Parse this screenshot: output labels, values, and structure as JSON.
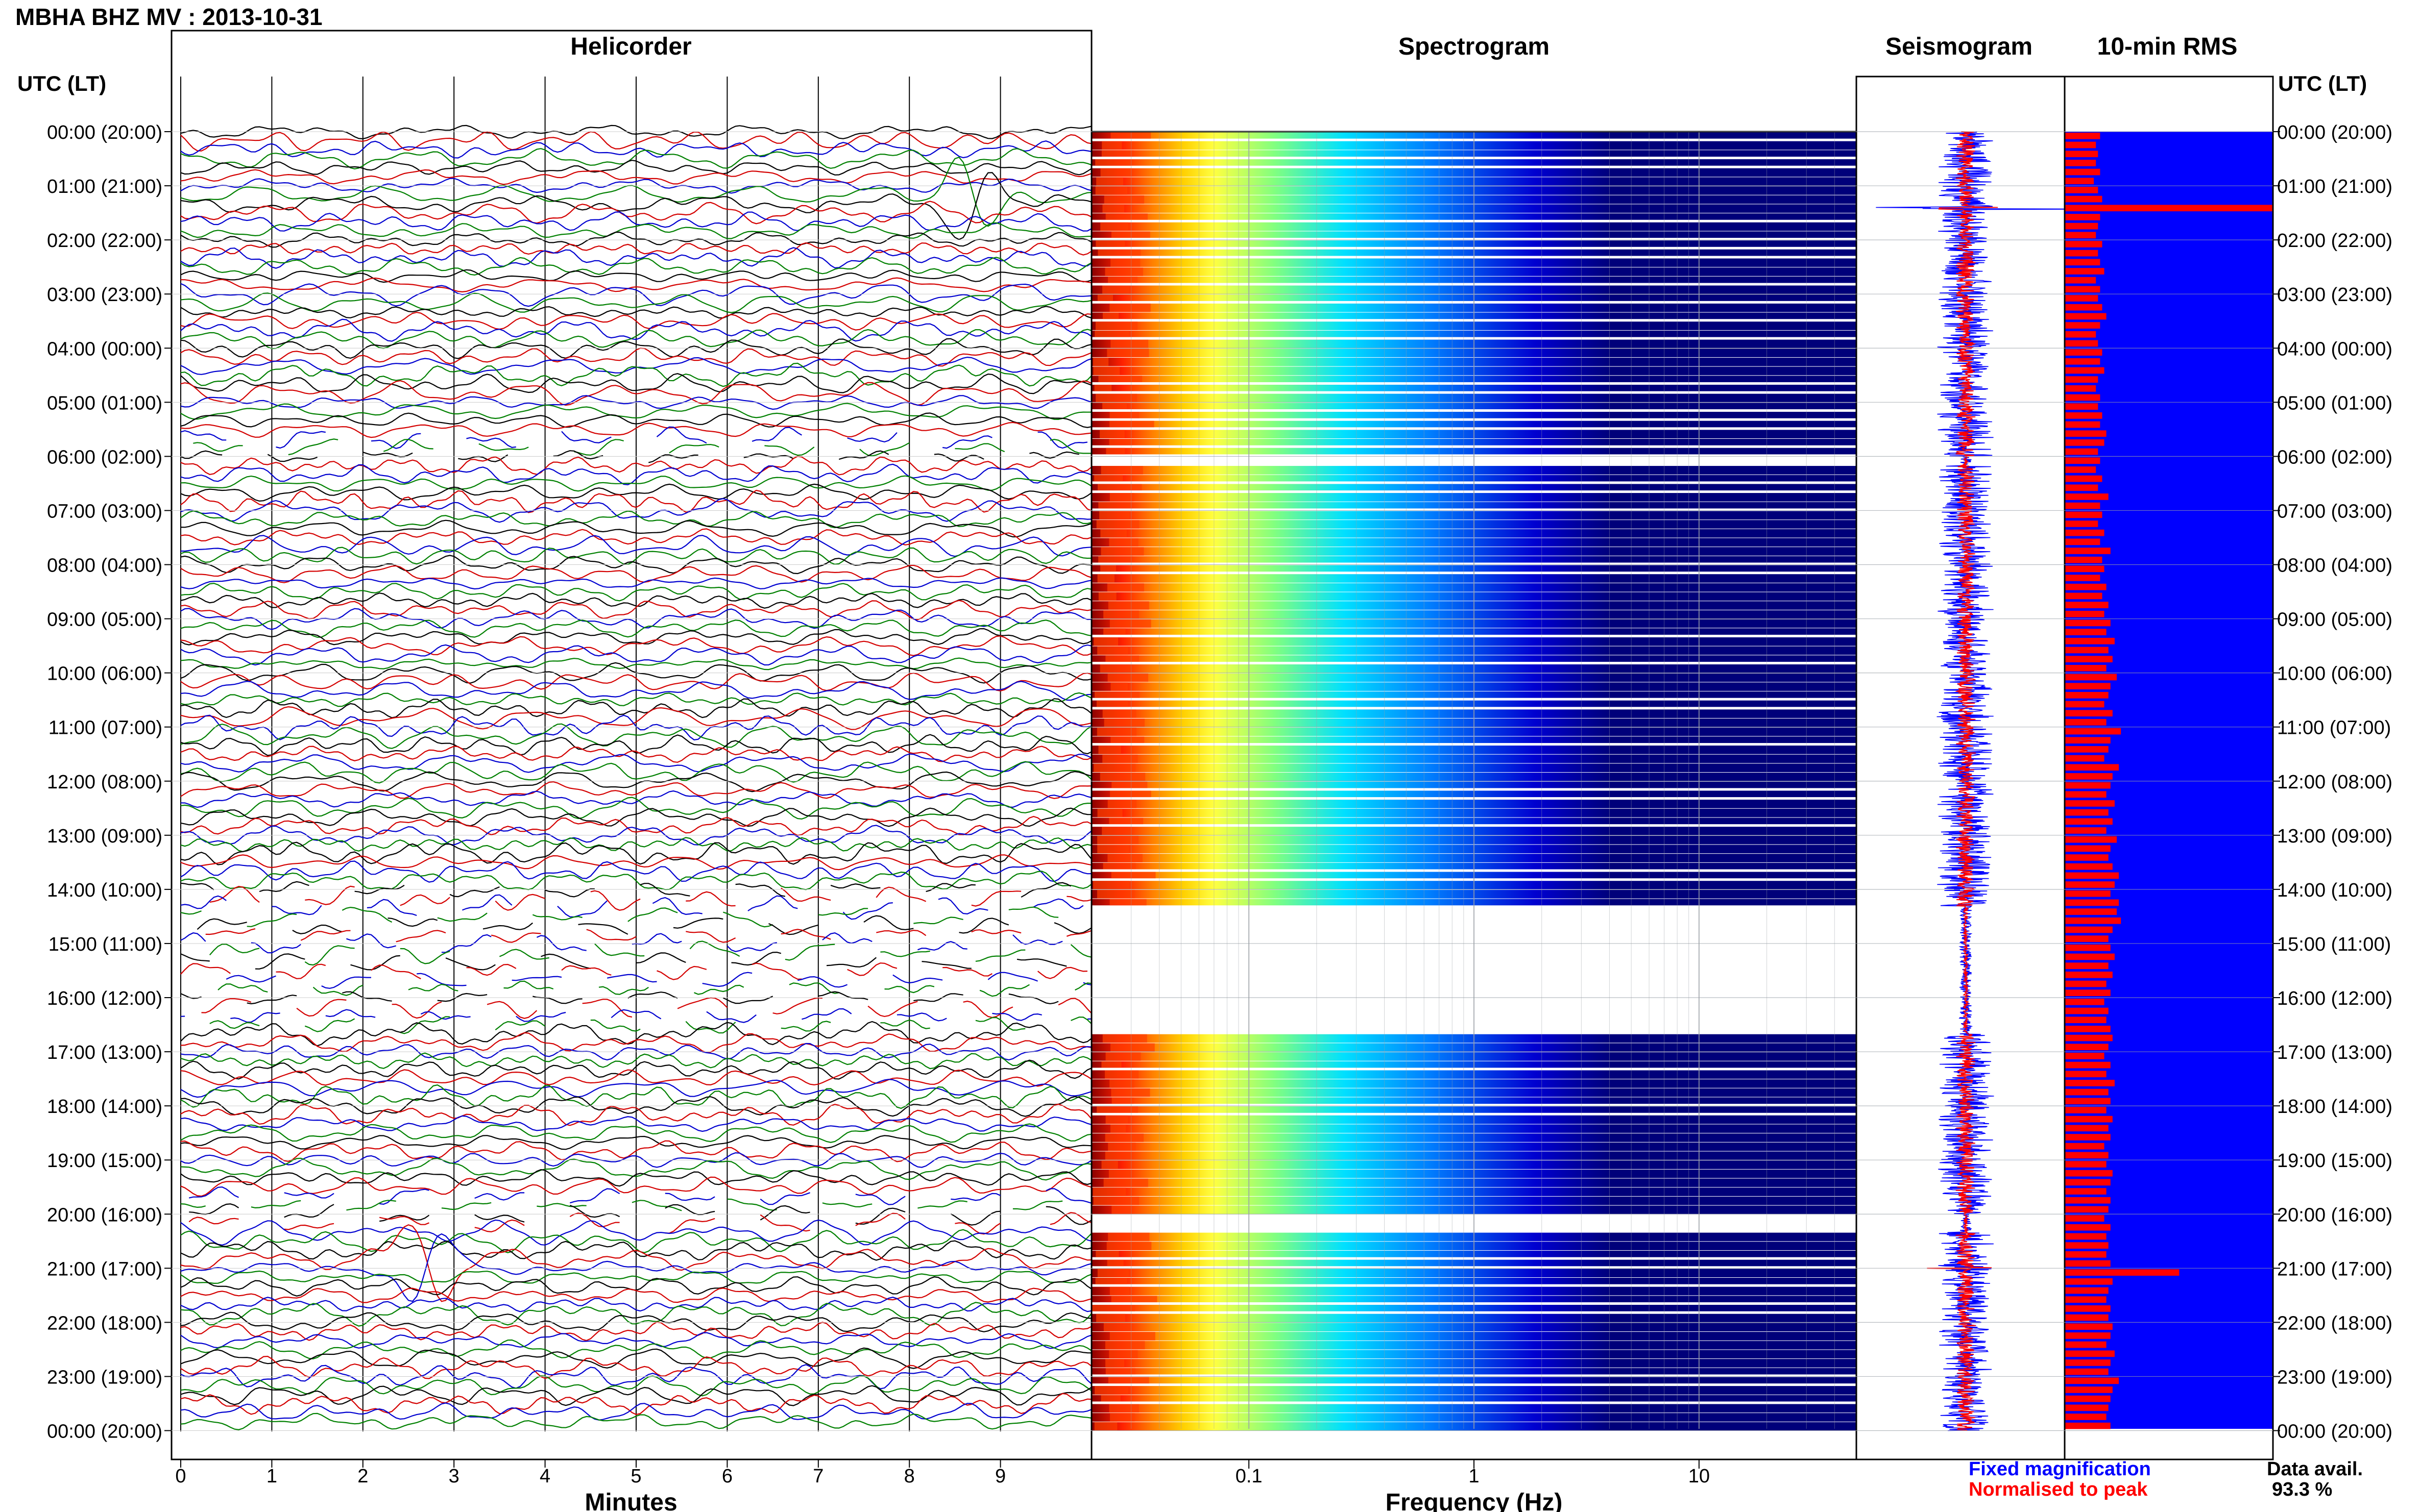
{
  "header": {
    "station_title": "MBHA BHZ MV : 2013-10-31",
    "utc_label_left": "UTC (LT)",
    "utc_label_right": "UTC (LT)"
  },
  "panels": {
    "helicorder": "Helicorder",
    "spectrogram": "Spectrogram",
    "seismogram": "Seismogram",
    "rms": "10-min RMS"
  },
  "time_labels": [
    "00:00 (20:00)",
    "01:00 (21:00)",
    "02:00 (22:00)",
    "03:00 (23:00)",
    "04:00 (00:00)",
    "05:00 (01:00)",
    "06:00 (02:00)",
    "07:00 (03:00)",
    "08:00 (04:00)",
    "09:00 (05:00)",
    "10:00 (06:00)",
    "11:00 (07:00)",
    "12:00 (08:00)",
    "13:00 (09:00)",
    "14:00 (10:00)",
    "15:00 (11:00)",
    "16:00 (12:00)",
    "17:00 (13:00)",
    "18:00 (14:00)",
    "19:00 (15:00)",
    "20:00 (16:00)",
    "21:00 (17:00)",
    "22:00 (18:00)",
    "23:00 (19:00)",
    "00:00 (20:00)"
  ],
  "footer": {
    "fixed_magnification": "Fixed magnification",
    "normalised_to_peak": "Normalised to peak",
    "data_avail_label": "Data avail.",
    "data_avail_value": "93.3 %"
  },
  "colors": {
    "trace_palette": [
      "#000000",
      "#d40000",
      "#0000d0",
      "#008000"
    ],
    "spectrogram_background": "#00007a",
    "seismogram_fixed": "#0000ff",
    "seismogram_normalised": "#ff0000",
    "rms_background": "#0000ff",
    "rms_bar": "#ff0000",
    "fixed_magnification_text": "#0000ff",
    "normalised_to_peak_text": "#ff0000"
  },
  "chart_data": [
    {
      "type": "line",
      "panel": "helicorder",
      "xlabel": "Minutes",
      "xlim": [
        0,
        10
      ],
      "x_ticks": [
        0,
        1,
        2,
        3,
        4,
        5,
        6,
        7,
        8,
        9
      ],
      "rows_per_hour": 6,
      "total_rows": 144,
      "events": [
        {
          "time_utc": "01:20",
          "minute": 8.7,
          "amplitude": "large"
        },
        {
          "time_utc": "21:00",
          "minute": 2.7,
          "amplitude": "large"
        }
      ]
    },
    {
      "type": "heatmap",
      "panel": "spectrogram",
      "xlabel": "Frequency (Hz)",
      "x_scale": "log",
      "xlim": [
        0.02,
        50
      ],
      "x_ticks": [
        "0.1",
        "1",
        "10"
      ],
      "color_scale": [
        "#8b0000",
        "#ff2000",
        "#ff8000",
        "#ffd000",
        "#ffff40",
        "#80ff80",
        "#00e0ff",
        "#0080ff",
        "#0000d0",
        "#00007a"
      ],
      "data_gaps_utc": [
        [
          "06:00",
          "06:10"
        ],
        [
          "14:20",
          "16:40"
        ],
        [
          "20:00",
          "20:20"
        ]
      ]
    },
    {
      "type": "line",
      "panel": "seismogram",
      "series": [
        {
          "name": "Fixed magnification",
          "color": "#0000ff"
        },
        {
          "name": "Normalised to peak",
          "color": "#ff0000"
        }
      ],
      "spikes_utc": [
        "01:25",
        "21:00"
      ]
    },
    {
      "type": "bar",
      "panel": "10-min RMS",
      "orientation": "horizontal",
      "interval_minutes": 10,
      "rms_relative": [
        0.17,
        0.15,
        0.16,
        0.15,
        0.17,
        0.14,
        0.16,
        0.18,
        1.0,
        0.17,
        0.16,
        0.15,
        0.18,
        0.16,
        0.17,
        0.19,
        0.15,
        0.17,
        0.16,
        0.18,
        0.2,
        0.17,
        0.15,
        0.16,
        0.18,
        0.17,
        0.19,
        0.16,
        0.15,
        0.17,
        0.16,
        0.18,
        0.17,
        0.2,
        0.19,
        0.16,
        0.17,
        0.15,
        0.18,
        0.16,
        0.21,
        0.17,
        0.18,
        0.16,
        0.19,
        0.17,
        0.22,
        0.18,
        0.19,
        0.17,
        0.2,
        0.18,
        0.21,
        0.19,
        0.22,
        0.2,
        0.24,
        0.21,
        0.23,
        0.2,
        0.25,
        0.22,
        0.21,
        0.19,
        0.23,
        0.2,
        0.27,
        0.22,
        0.21,
        0.19,
        0.26,
        0.23,
        0.22,
        0.2,
        0.24,
        0.21,
        0.23,
        0.2,
        0.25,
        0.22,
        0.21,
        0.23,
        0.26,
        0.24,
        0.22,
        0.26,
        0.25,
        0.27,
        0.23,
        0.21,
        0.22,
        0.24,
        0.21,
        0.23,
        0.2,
        0.22,
        0.19,
        0.21,
        0.2,
        0.22,
        0.23,
        0.21,
        0.19,
        0.22,
        0.2,
        0.24,
        0.21,
        0.22,
        0.2,
        0.23,
        0.21,
        0.22,
        0.19,
        0.21,
        0.2,
        0.23,
        0.22,
        0.2,
        0.22,
        0.21,
        0.19,
        0.22,
        0.2,
        0.21,
        0.2,
        0.22,
        0.55,
        0.23,
        0.21,
        0.2,
        0.22,
        0.21,
        0.23,
        0.22,
        0.2,
        0.24,
        0.22,
        0.21,
        0.26,
        0.23,
        0.22,
        0.21,
        0.2,
        0.22
      ]
    }
  ]
}
